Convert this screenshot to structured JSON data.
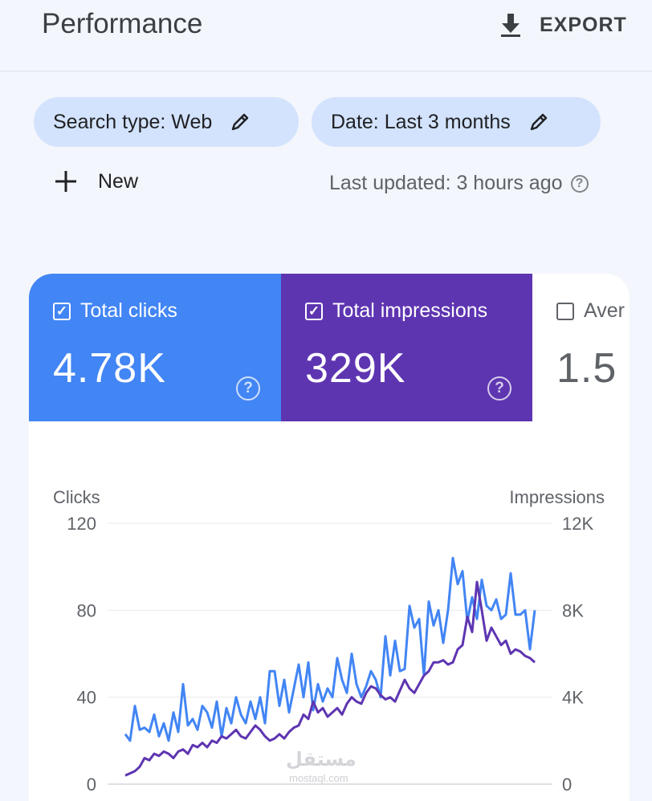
{
  "header": {
    "title": "Performance",
    "export_label": "EXPORT"
  },
  "filters": {
    "search_type": "Search type: Web",
    "date": "Date: Last 3 months",
    "new_label": "New",
    "last_updated": "Last updated: 3 hours ago"
  },
  "metrics": [
    {
      "label": "Total clicks",
      "value": "4.78K",
      "checked": true,
      "color": "#4285f4"
    },
    {
      "label": "Total impressions",
      "value": "329K",
      "checked": true,
      "color": "#5e35b1"
    },
    {
      "label": "Aver",
      "value": "1.5",
      "checked": false,
      "color": "#ffffff"
    }
  ],
  "watermark": {
    "text": "مستقل",
    "sub": "mostaql.com"
  },
  "chart_data": {
    "type": "line",
    "left_axis_title": "Clicks",
    "right_axis_title": "Impressions",
    "y_left_ticks": [
      "120",
      "80",
      "40",
      "0"
    ],
    "y_right_ticks": [
      "12K",
      "8K",
      "4K",
      "0"
    ],
    "ylim_left": [
      0,
      120
    ],
    "ylim_right": [
      0,
      12000
    ],
    "grid": true,
    "series": [
      {
        "name": "Clicks",
        "axis": "left",
        "color": "#4285f4",
        "values": [
          23,
          20,
          36,
          25,
          26,
          24,
          32,
          22,
          28,
          20,
          33,
          24,
          46,
          27,
          30,
          25,
          36,
          33,
          26,
          38,
          22,
          35,
          28,
          40,
          32,
          28,
          38,
          30,
          40,
          28,
          52,
          52,
          36,
          48,
          33,
          44,
          55,
          40,
          56,
          34,
          46,
          38,
          44,
          40,
          58,
          48,
          42,
          60,
          46,
          40,
          45,
          52,
          48,
          40,
          68,
          50,
          66,
          52,
          53,
          82,
          72,
          76,
          50,
          84,
          73,
          80,
          65,
          80,
          104,
          92,
          98,
          75,
          86,
          76,
          94,
          82,
          80,
          85,
          76,
          78,
          97,
          78,
          78,
          80,
          62,
          80
        ]
      },
      {
        "name": "Impressions",
        "axis": "right",
        "color": "#5e35b1",
        "values": [
          400,
          500,
          600,
          800,
          1200,
          1100,
          1400,
          1300,
          1500,
          1400,
          1200,
          1500,
          1600,
          1400,
          1800,
          1700,
          1900,
          1700,
          2000,
          1900,
          2200,
          2100,
          2300,
          2500,
          2200,
          2100,
          2400,
          2700,
          2500,
          2200,
          2000,
          2100,
          2300,
          2100,
          2400,
          2600,
          2700,
          3200,
          3000,
          3800,
          3300,
          3500,
          3100,
          3300,
          3500,
          3200,
          3700,
          4000,
          3800,
          3700,
          4200,
          4500,
          4400,
          4100,
          3900,
          4000,
          3800,
          4300,
          4800,
          4400,
          4200,
          4600,
          5000,
          5200,
          5600,
          5600,
          5700,
          5500,
          5600,
          6200,
          6400,
          7700,
          7000,
          9300,
          8000,
          6600,
          7200,
          6800,
          6400,
          6600,
          6000,
          6200,
          6100,
          5900,
          5800,
          5600
        ]
      }
    ]
  }
}
